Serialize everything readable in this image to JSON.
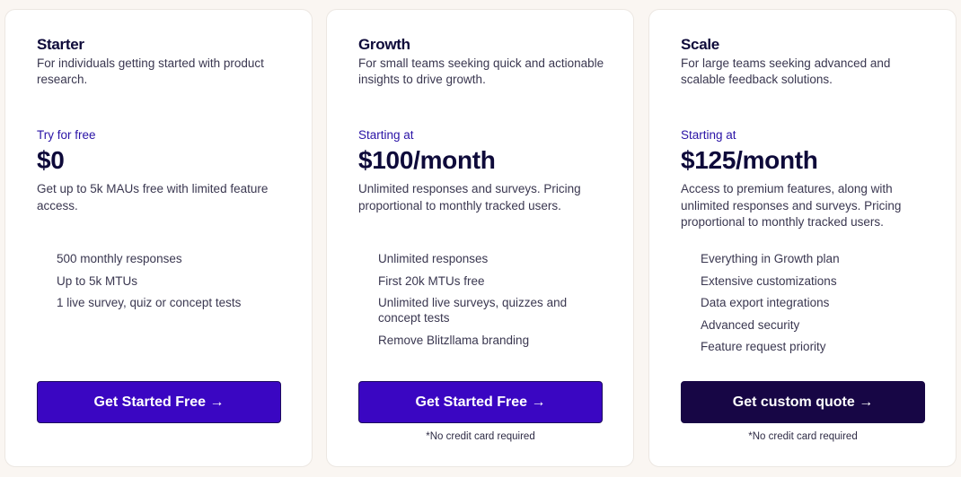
{
  "plans": [
    {
      "name": "Starter",
      "description": "For individuals getting started with product research.",
      "price_prefix": "Try for free",
      "price": "$0",
      "price_description": "Get up to 5k MAUs free with limited feature access.",
      "features": [
        "500 monthly responses",
        "Up to 5k MTUs",
        "1 live survey, quiz or concept tests"
      ],
      "cta": "Get Started Free →",
      "note": ""
    },
    {
      "name": "Growth",
      "description": "For small teams seeking quick and actionable insights to drive growth.",
      "price_prefix": "Starting at",
      "price": "$100/month",
      "price_description": "Unlimited responses and surveys. Pricing proportional to monthly tracked users.",
      "features": [
        "Unlimited responses",
        "First 20k MTUs free",
        "Unlimited live surveys, quizzes and concept tests",
        "Remove Blitzllama branding"
      ],
      "cta": "Get Started Free →",
      "note": "*No credit card required"
    },
    {
      "name": "Scale",
      "description": "For large teams seeking advanced and scalable feedback solutions.",
      "price_prefix": "Starting at",
      "price": "$125/month",
      "price_description": "Access to premium features, along with unlimited responses and surveys. Pricing proportional to monthly tracked users.",
      "features": [
        "Everything in Growth plan",
        "Extensive customizations",
        "Data export integrations",
        "Advanced security",
        "Feature request priority"
      ],
      "cta": "Get custom quote →",
      "note": "*No credit card required"
    }
  ],
  "colors": {
    "accent": "#3a06c2",
    "dark_button": "#170645",
    "background": "#faf6f2",
    "heading": "#0e0a3a"
  }
}
